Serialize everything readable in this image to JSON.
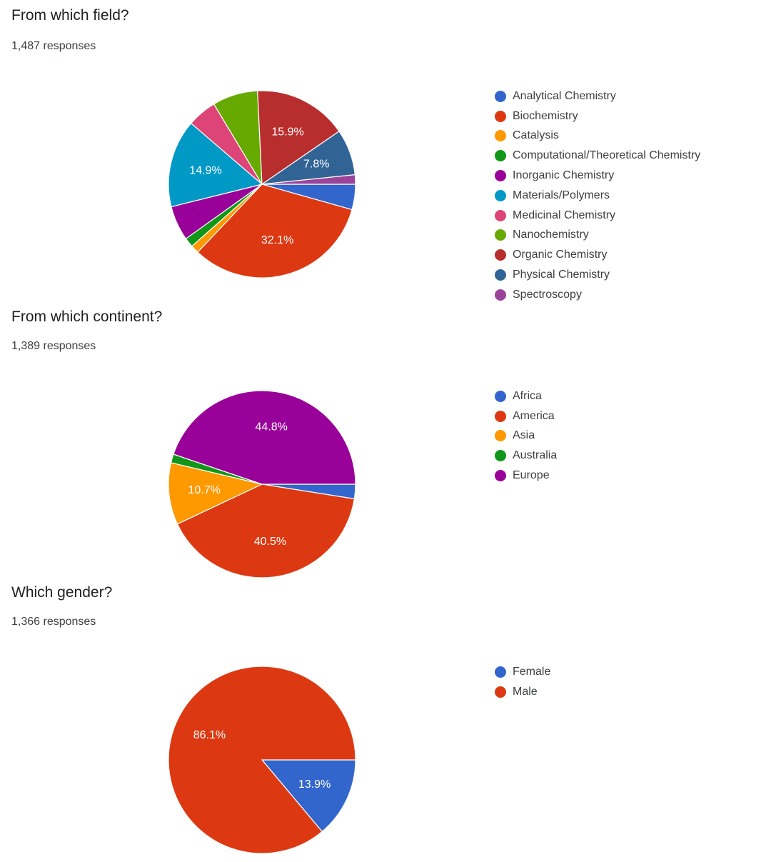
{
  "chart_data": [
    {
      "type": "pie",
      "title": "From which field?",
      "subtitle": "1,487 responses",
      "legend_position": "right",
      "categories": [
        "Analytical Chemistry",
        "Biochemistry",
        "Catalysis",
        "Computational/Theoretical Chemistry",
        "Inorganic Chemistry",
        "Materials/Polymers",
        "Medicinal Chemistry",
        "Nanochemistry",
        "Organic Chemistry",
        "Physical Chemistry",
        "Spectroscopy"
      ],
      "values": [
        4.3,
        32.1,
        1.4,
        1.6,
        5.9,
        14.9,
        5.0,
        7.7,
        15.9,
        7.8,
        1.6
      ],
      "labels": [
        "",
        "32.1%",
        "",
        "",
        "",
        "14.9%",
        "",
        "",
        "15.9%",
        "7.8%",
        ""
      ],
      "colors": [
        "#3366cc",
        "#dc3912",
        "#ff9900",
        "#109618",
        "#990099",
        "#0099c6",
        "#dd4477",
        "#66aa00",
        "#b82e2e",
        "#316395",
        "#994499"
      ]
    },
    {
      "type": "pie",
      "title": "From which continent?",
      "subtitle": "1,389 responses",
      "legend_position": "right",
      "categories": [
        "Africa",
        "America",
        "Asia",
        "Australia",
        "Europe"
      ],
      "values": [
        2.5,
        40.5,
        10.7,
        1.5,
        44.8
      ],
      "labels": [
        "",
        "40.5%",
        "10.7%",
        "",
        "44.8%"
      ],
      "colors": [
        "#3366cc",
        "#dc3912",
        "#ff9900",
        "#109618",
        "#990099"
      ]
    },
    {
      "type": "pie",
      "title": "Which gender?",
      "subtitle": "1,366 responses",
      "legend_position": "right",
      "categories": [
        "Female",
        "Male"
      ],
      "values": [
        13.9,
        86.1
      ],
      "labels": [
        "13.9%",
        "86.1%"
      ],
      "colors": [
        "#3366cc",
        "#dc3912"
      ]
    }
  ]
}
